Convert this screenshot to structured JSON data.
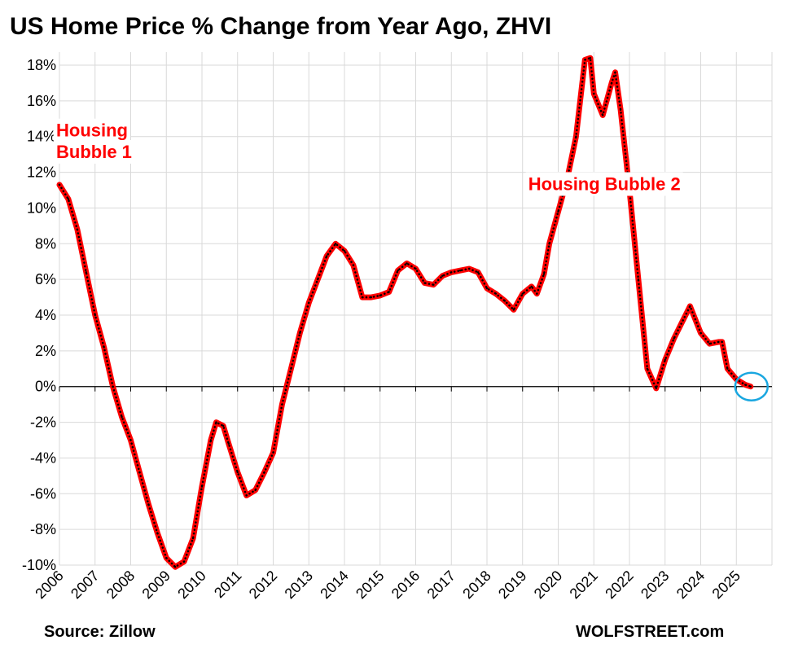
{
  "chart_data": {
    "type": "line",
    "title_parts": [
      {
        "text": "US Home Price ",
        "color": "#000000"
      },
      {
        "text": "% Change from Year Ago",
        "color": "#ff0000"
      },
      {
        "text": ", ZHVI",
        "color": "#000000"
      }
    ],
    "ylim": [
      -10,
      18
    ],
    "y_ticks": [
      -10,
      -8,
      -6,
      -4,
      -2,
      0,
      2,
      4,
      6,
      8,
      10,
      12,
      14,
      16,
      18
    ],
    "y_tick_labels": [
      "-10%",
      "-8%",
      "-6%",
      "-4%",
      "-2%",
      "0%",
      "2%",
      "4%",
      "6%",
      "8%",
      "10%",
      "12%",
      "14%",
      "16%",
      "18%"
    ],
    "x_range": [
      2006.0,
      2026.0
    ],
    "x_tick_labels": [
      "2006",
      "2007",
      "2008",
      "2009",
      "2010",
      "2011",
      "2012",
      "2013",
      "2014",
      "2015",
      "2016",
      "2017",
      "2018",
      "2019",
      "2020",
      "2021",
      "2022",
      "2023",
      "2024",
      "2025"
    ],
    "grid": true,
    "line_color": "#ff0000",
    "marker_color": "#000000",
    "highlight_color": "#1aa7e0",
    "series": [
      {
        "points": [
          [
            2006.0,
            11.3
          ],
          [
            2006.25,
            10.5
          ],
          [
            2006.5,
            8.8
          ],
          [
            2006.75,
            6.4
          ],
          [
            2007.0,
            4.0
          ],
          [
            2007.25,
            2.2
          ],
          [
            2007.5,
            0.0
          ],
          [
            2007.75,
            -1.7
          ],
          [
            2008.0,
            -3.0
          ],
          [
            2008.25,
            -4.8
          ],
          [
            2008.5,
            -6.6
          ],
          [
            2008.75,
            -8.2
          ],
          [
            2009.0,
            -9.6
          ],
          [
            2009.25,
            -10.1
          ],
          [
            2009.5,
            -9.8
          ],
          [
            2009.75,
            -8.5
          ],
          [
            2010.0,
            -5.6
          ],
          [
            2010.25,
            -3.0
          ],
          [
            2010.4,
            -2.0
          ],
          [
            2010.6,
            -2.2
          ],
          [
            2010.75,
            -3.2
          ],
          [
            2011.0,
            -4.8
          ],
          [
            2011.25,
            -6.1
          ],
          [
            2011.5,
            -5.8
          ],
          [
            2011.75,
            -4.8
          ],
          [
            2012.0,
            -3.7
          ],
          [
            2012.25,
            -1.0
          ],
          [
            2012.5,
            1.0
          ],
          [
            2012.75,
            3.0
          ],
          [
            2013.0,
            4.7
          ],
          [
            2013.25,
            6.0
          ],
          [
            2013.5,
            7.3
          ],
          [
            2013.75,
            8.0
          ],
          [
            2014.0,
            7.6
          ],
          [
            2014.25,
            6.8
          ],
          [
            2014.5,
            5.0
          ],
          [
            2014.75,
            5.0
          ],
          [
            2015.0,
            5.1
          ],
          [
            2015.25,
            5.3
          ],
          [
            2015.5,
            6.5
          ],
          [
            2015.75,
            6.9
          ],
          [
            2016.0,
            6.6
          ],
          [
            2016.25,
            5.8
          ],
          [
            2016.5,
            5.7
          ],
          [
            2016.75,
            6.2
          ],
          [
            2017.0,
            6.4
          ],
          [
            2017.25,
            6.5
          ],
          [
            2017.5,
            6.6
          ],
          [
            2017.75,
            6.4
          ],
          [
            2018.0,
            5.5
          ],
          [
            2018.25,
            5.2
          ],
          [
            2018.5,
            4.8
          ],
          [
            2018.75,
            4.3
          ],
          [
            2019.0,
            5.2
          ],
          [
            2019.25,
            5.6
          ],
          [
            2019.4,
            5.2
          ],
          [
            2019.6,
            6.3
          ],
          [
            2019.75,
            8.0
          ],
          [
            2020.0,
            9.8
          ],
          [
            2020.25,
            11.6
          ],
          [
            2020.5,
            14.0
          ],
          [
            2020.75,
            18.3
          ],
          [
            2020.9,
            18.4
          ],
          [
            2021.0,
            16.4
          ],
          [
            2021.25,
            15.2
          ],
          [
            2021.5,
            17.0
          ],
          [
            2021.6,
            17.6
          ],
          [
            2021.75,
            15.5
          ],
          [
            2022.0,
            11.0
          ],
          [
            2022.25,
            6.0
          ],
          [
            2022.5,
            1.0
          ],
          [
            2022.75,
            -0.1
          ],
          [
            2023.0,
            1.5
          ],
          [
            2023.25,
            2.7
          ],
          [
            2023.5,
            3.7
          ],
          [
            2023.7,
            4.5
          ],
          [
            2024.0,
            3.0
          ],
          [
            2024.25,
            2.4
          ],
          [
            2024.5,
            2.5
          ],
          [
            2024.6,
            2.5
          ],
          [
            2024.75,
            1.0
          ],
          [
            2025.0,
            0.4
          ],
          [
            2025.25,
            0.1
          ],
          [
            2025.4,
            0.0
          ]
        ]
      }
    ],
    "annotations": [
      {
        "text": "Housing",
        "near": [
          2006.0,
          14.0
        ]
      },
      {
        "text": "Bubble 1",
        "near": [
          2006.0,
          12.8
        ]
      },
      {
        "text": "Housing Bubble 2",
        "near": [
          2019.25,
          11.0
        ]
      }
    ],
    "source": "Source: Zillow",
    "brand": "WOLFSTREET.com"
  }
}
